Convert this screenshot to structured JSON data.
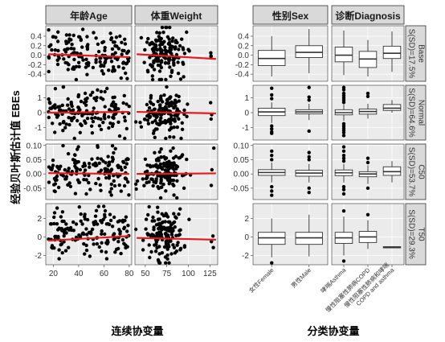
{
  "figure": {
    "y_axis_title": "经验贝叶斯估计值 EBEs",
    "left_x_axis_title": "连续协变量",
    "right_x_axis_title": "分类协变量",
    "row_strips": [
      "S(SD)=17.5%\nBase",
      "S(SD)=64.6%\nNormal",
      "S(SD)=53.7%\nC50",
      "S(SD)=29.3%\nT50"
    ],
    "row_strip_main": [
      "Base",
      "Normal",
      "C50",
      "T50"
    ],
    "row_strip_shrink": [
      "S(SD)=17.5%",
      "S(SD)=64.6%",
      "S(SD)=53.7%",
      "S(SD)=29.3%"
    ],
    "col_strips": [
      "年龄Age",
      "体重Weight",
      "性别Sex",
      "诊断Diagnosis"
    ]
  },
  "colors": {
    "panel_bg": "#ebebeb",
    "grid_major": "#ffffff",
    "strip_bg": "#d9d9d9",
    "point": "#000000",
    "trend_line": "#e41a1c",
    "box_fill": "#ffffff",
    "box_line": "#333333"
  },
  "chart_data": [
    {
      "type": "scatter",
      "columns": [
        {
          "name": "年龄Age",
          "xlim": [
            14,
            82
          ],
          "xticks": [
            20,
            40,
            60,
            80
          ]
        },
        {
          "name": "体重Weight",
          "xlim": [
            38,
            134
          ],
          "xticks": [
            50,
            75,
            100,
            125
          ]
        }
      ],
      "rows": [
        {
          "name": "Base",
          "ylim": [
            -0.55,
            0.62
          ],
          "yticks": [
            -0.4,
            -0.2,
            0.0,
            0.2,
            0.4
          ],
          "ytick_labels": [
            "-0.4",
            "-0.2",
            "0.0",
            "0.2",
            "0.4"
          ],
          "trend": {
            "Age": [
              [
                16,
                0.02
              ],
              [
                80,
                -0.04
              ]
            ],
            "Weight": [
              [
                40,
                0.02
              ],
              [
                132,
                -0.08
              ]
            ]
          }
        },
        {
          "name": "Normal",
          "ylim": [
            -1.85,
            1.85
          ],
          "yticks": [
            -1,
            0,
            1
          ],
          "ytick_labels": [
            "-1",
            "0",
            "1"
          ],
          "trend": {
            "Age": [
              [
                16,
                0.0
              ],
              [
                80,
                0.05
              ]
            ],
            "Weight": [
              [
                40,
                0.05
              ],
              [
                132,
                -0.05
              ]
            ]
          }
        },
        {
          "name": "C50",
          "ylim": [
            -0.09,
            0.105
          ],
          "yticks": [
            -0.05,
            0.0,
            0.05,
            0.1
          ],
          "ytick_labels": [
            "-0.05",
            "0.00",
            "0.05",
            "0.10"
          ],
          "trend": {
            "Age": [
              [
                16,
                0.003
              ],
              [
                80,
                0.0
              ]
            ],
            "Weight": [
              [
                40,
                0.0
              ],
              [
                132,
                0.002
              ]
            ]
          }
        },
        {
          "name": "T50",
          "ylim": [
            -3.0,
            3.6
          ],
          "yticks": [
            -2,
            0,
            2
          ],
          "ytick_labels": [
            "-2",
            "0",
            "2"
          ],
          "trend": {
            "Age": [
              [
                16,
                -0.4
              ],
              [
                80,
                0.1
              ]
            ],
            "Weight": [
              [
                40,
                -0.1
              ],
              [
                132,
                -0.3
              ]
            ]
          }
        }
      ]
    },
    {
      "type": "box",
      "columns": [
        {
          "name": "性别Sex",
          "categories": [
            "女性Female",
            "男性Male"
          ]
        },
        {
          "name": "诊断Diagnosis",
          "categories": [
            "哮喘Asthma",
            "慢性阻塞性肺病COPD",
            "慢性阻塞性肺病和哮喘\nCOPD and asthma"
          ]
        }
      ],
      "rows": [
        {
          "name": "Base",
          "Sex": [
            {
              "category": "女性Female",
              "min": -0.45,
              "q1": -0.22,
              "median": -0.07,
              "q3": 0.1,
              "max": 0.4,
              "outliers": []
            },
            {
              "category": "男性Male",
              "min": -0.38,
              "q1": -0.05,
              "median": 0.06,
              "q3": 0.2,
              "max": 0.55,
              "outliers": []
            }
          ],
          "Diagnosis": [
            {
              "category": "哮喘Asthma",
              "min": -0.42,
              "q1": -0.14,
              "median": 0.0,
              "q3": 0.17,
              "max": 0.52,
              "outliers": []
            },
            {
              "category": "慢性阻塞性肺病COPD",
              "min": -0.45,
              "q1": -0.26,
              "median": -0.08,
              "q3": 0.08,
              "max": 0.32,
              "outliers": []
            },
            {
              "category": "慢性阻塞性肺病和哮喘\nCOPD and asthma",
              "min": -0.35,
              "q1": -0.07,
              "median": 0.04,
              "q3": 0.19,
              "max": 0.5,
              "outliers": []
            }
          ]
        },
        {
          "name": "Normal",
          "Sex": [
            {
              "category": "女性Female",
              "min": -0.7,
              "q1": -0.2,
              "median": 0.05,
              "q3": 0.3,
              "max": 0.7,
              "outliers": [
                -0.9,
                -1.1,
                -1.3,
                -1.4,
                0.95,
                1.2,
                1.65
              ]
            },
            {
              "category": "男性Male",
              "min": -0.5,
              "q1": -0.08,
              "median": 0.05,
              "q3": 0.2,
              "max": 0.6,
              "outliers": [
                -1.25,
                0.85,
                1.05,
                1.7
              ]
            }
          ],
          "Diagnosis": [
            {
              "category": "哮喘Asthma",
              "min": -0.55,
              "q1": -0.15,
              "median": 0.0,
              "q3": 0.2,
              "max": 0.55,
              "outliers": [
                -0.75,
                -0.9,
                -1.05,
                -1.2,
                -1.35,
                -1.55,
                0.7,
                0.85,
                1.0,
                1.15,
                1.3,
                1.55,
                1.7
              ]
            },
            {
              "category": "慢性阻塞性肺病COPD",
              "min": -0.4,
              "q1": -0.1,
              "median": 0.08,
              "q3": 0.25,
              "max": 0.6,
              "outliers": [
                1.1,
                1.3
              ]
            },
            {
              "category": "慢性阻塞性肺病和哮喘\nCOPD and asthma",
              "min": 0.0,
              "q1": 0.15,
              "median": 0.3,
              "q3": 0.55,
              "max": 0.85,
              "outliers": []
            }
          ]
        },
        {
          "name": "C50",
          "Sex": [
            {
              "category": "女性Female",
              "min": -0.03,
              "q1": -0.005,
              "median": 0.005,
              "q3": 0.015,
              "max": 0.04,
              "outliers": [
                -0.045,
                -0.06,
                -0.075,
                0.05,
                0.065,
                0.08
              ]
            },
            {
              "category": "男性Male",
              "min": -0.03,
              "q1": -0.008,
              "median": 0.003,
              "q3": 0.013,
              "max": 0.035,
              "outliers": [
                -0.05,
                -0.065,
                0.05,
                0.06,
                0.075
              ]
            }
          ],
          "Diagnosis": [
            {
              "category": "哮喘Asthma",
              "min": -0.03,
              "q1": -0.006,
              "median": 0.004,
              "q3": 0.014,
              "max": 0.035,
              "outliers": [
                -0.045,
                -0.055,
                -0.07,
                0.045,
                0.055,
                0.065,
                0.08,
                0.095
              ]
            },
            {
              "category": "慢性阻塞性肺病COPD",
              "min": -0.035,
              "q1": -0.01,
              "median": 0.0,
              "q3": 0.008,
              "max": 0.03,
              "outliers": [
                0.04,
                0.055,
                -0.05
              ]
            },
            {
              "category": "慢性阻塞性肺病和哮喘\nCOPD and asthma",
              "min": -0.03,
              "q1": -0.005,
              "median": 0.008,
              "q3": 0.025,
              "max": 0.045,
              "outliers": []
            }
          ]
        },
        {
          "name": "T50",
          "Sex": [
            {
              "category": "女性Female",
              "min": -2.2,
              "q1": -0.8,
              "median": -0.1,
              "q3": 0.5,
              "max": 2.0,
              "outliers": [
                -2.8
              ]
            },
            {
              "category": "男性Male",
              "min": -2.1,
              "q1": -0.8,
              "median": -0.1,
              "q3": 0.5,
              "max": 2.4,
              "outliers": []
            }
          ],
          "Diagnosis": [
            {
              "category": "哮喘Asthma",
              "min": -2.0,
              "q1": -0.7,
              "median": -0.1,
              "q3": 0.5,
              "max": 2.2,
              "outliers": [
                -2.6,
                2.8
              ]
            },
            {
              "category": "慢性阻塞性肺病COPD",
              "min": -1.3,
              "q1": -0.6,
              "median": 0.0,
              "q3": 0.6,
              "max": 1.8,
              "outliers": [
                2.4
              ]
            },
            {
              "category": "慢性阻塞性肺病和哮喘\nCOPD and asthma",
              "min": -1.2,
              "q1": -1.15,
              "median": -1.1,
              "q3": -1.05,
              "max": -1.0,
              "outliers": []
            }
          ]
        }
      ]
    }
  ]
}
